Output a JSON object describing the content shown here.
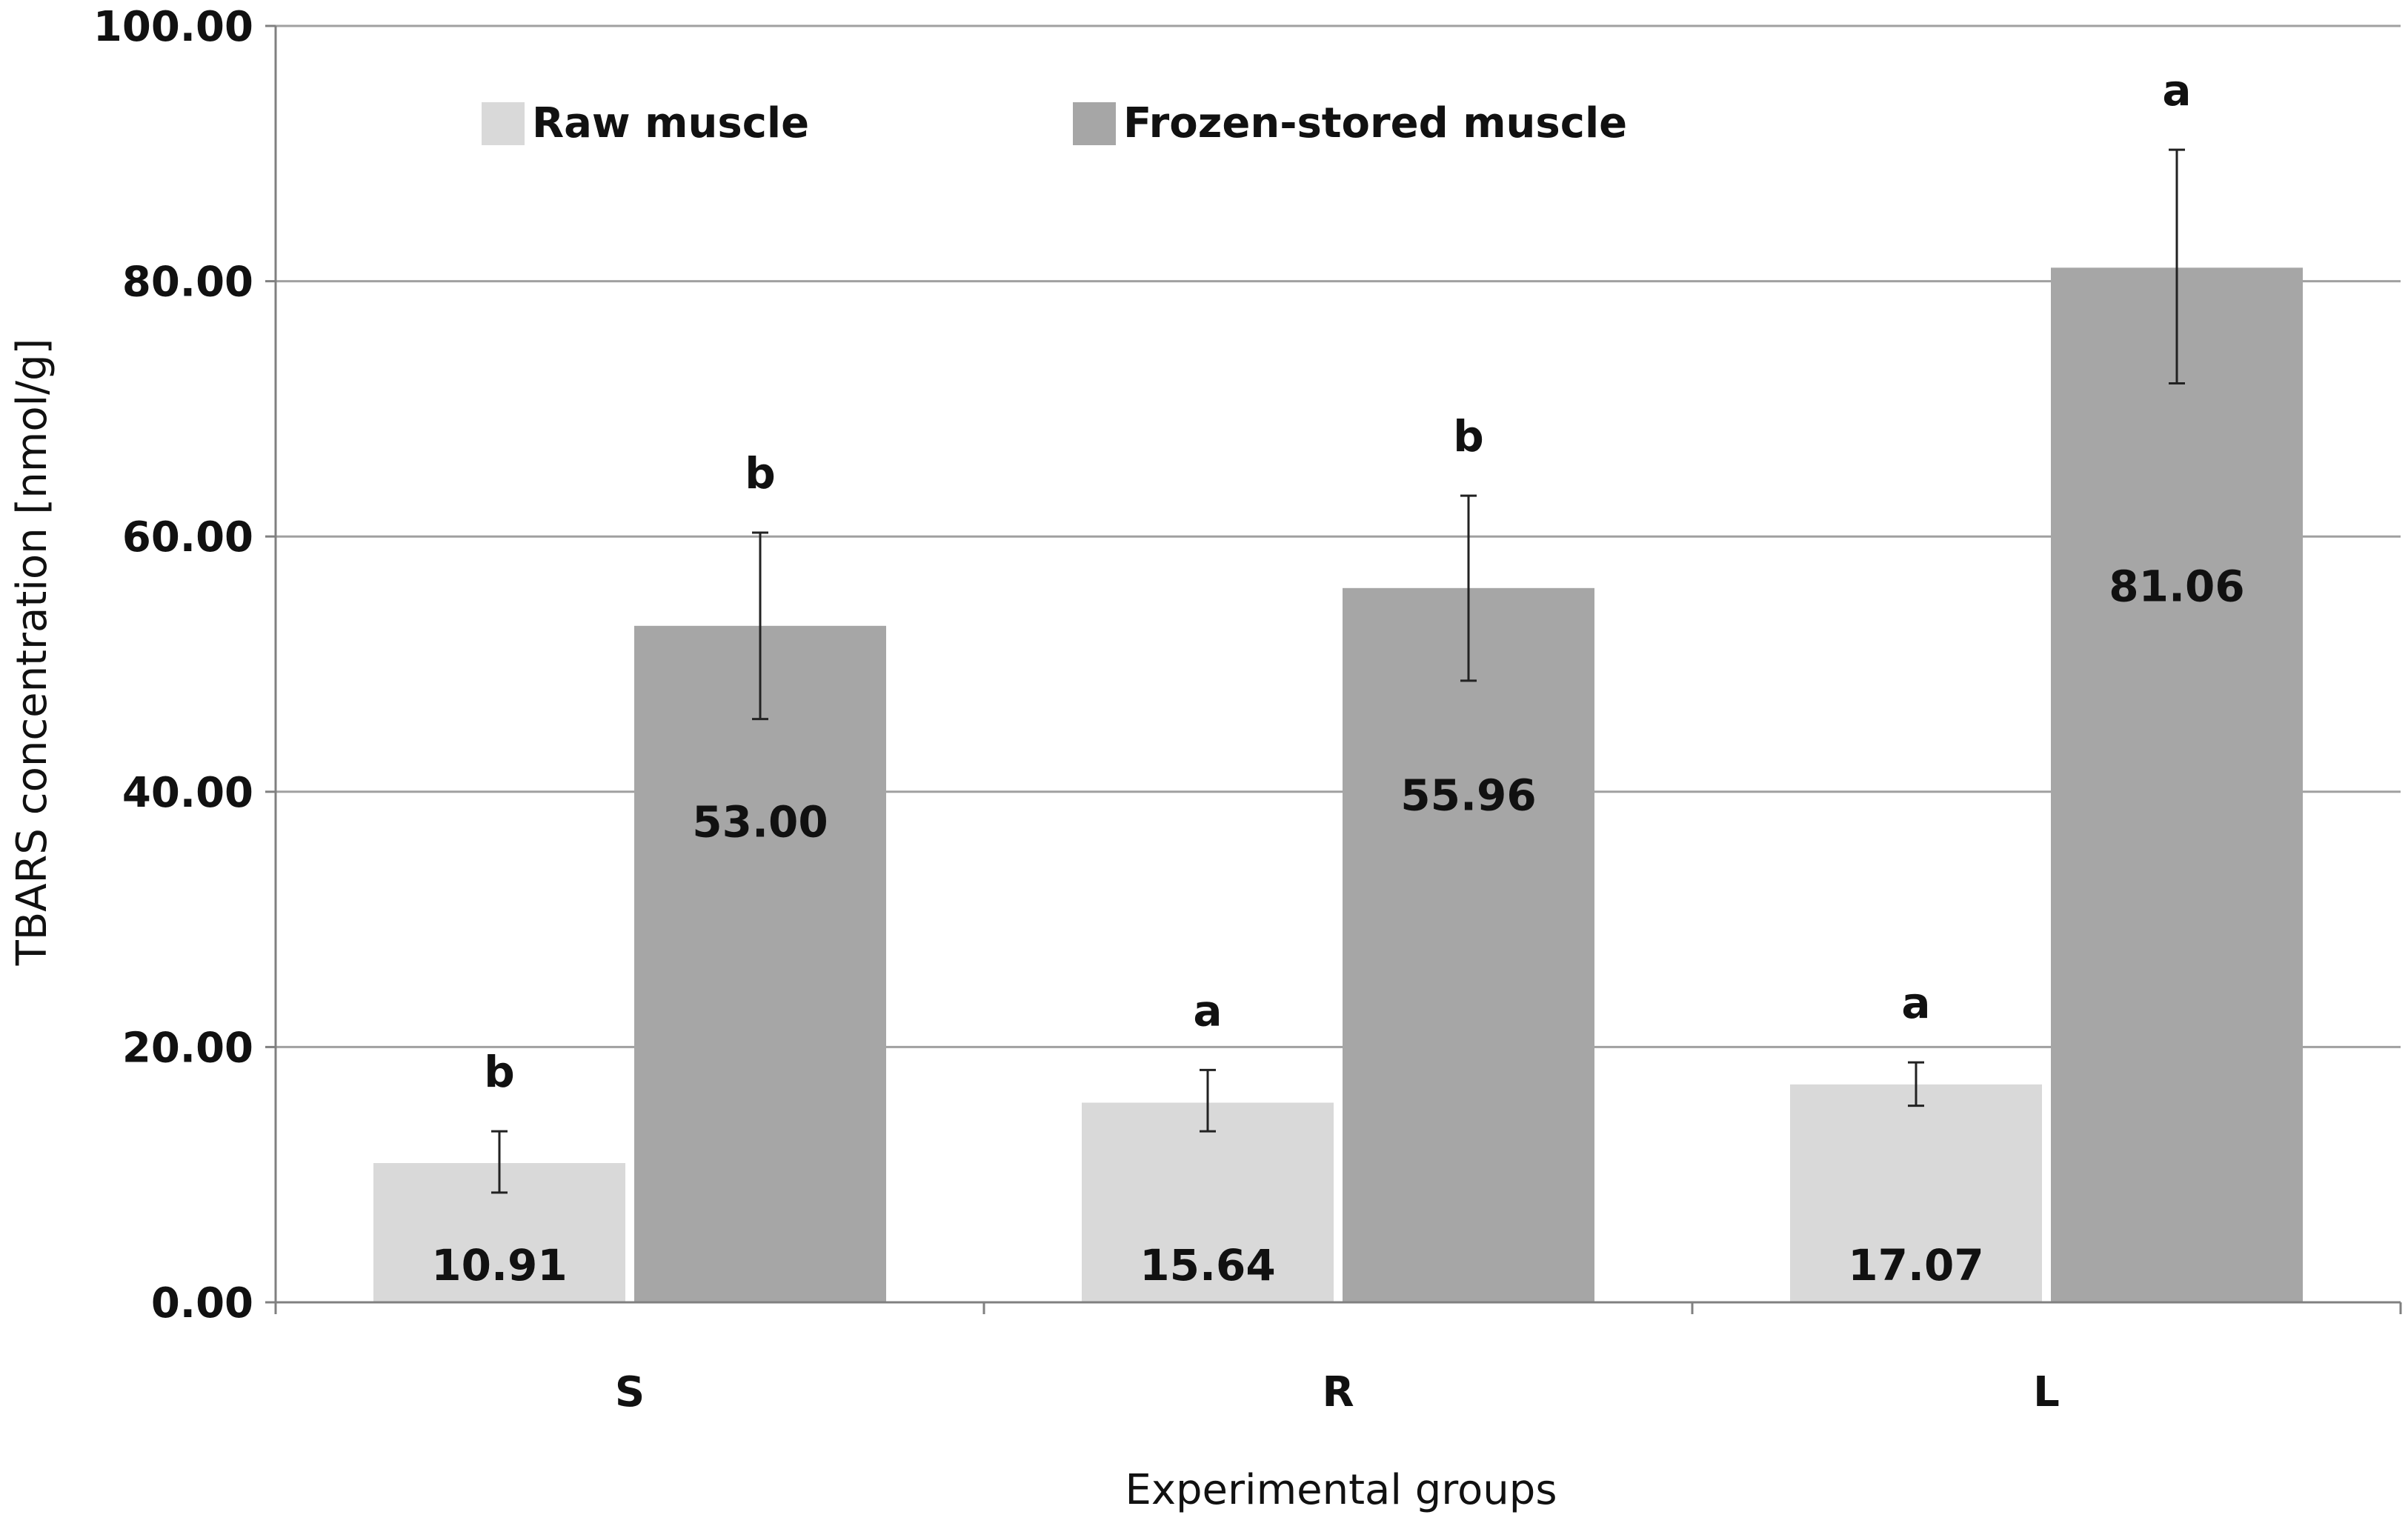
{
  "chart_data": {
    "type": "bar",
    "xlabel": "Experimental groups",
    "ylabel": "TBARS concentration [nmol/g]",
    "categories": [
      "S",
      "R",
      "L"
    ],
    "ylim": [
      0,
      100
    ],
    "yticks": [
      0,
      20,
      40,
      60,
      80,
      100
    ],
    "ytick_labels": [
      "0.00",
      "20.00",
      "40.00",
      "60.00",
      "80.00",
      "100.00"
    ],
    "grid": "horizontal",
    "legend_position": "top-left",
    "series": [
      {
        "name": "Raw muscle",
        "color": "#d9d9d9",
        "values": [
          10.91,
          15.64,
          17.07
        ],
        "value_labels": [
          "10.91",
          "15.64",
          "17.07"
        ],
        "error_low": [
          8.6,
          13.4,
          15.4
        ],
        "error_high": [
          13.4,
          18.2,
          18.8
        ],
        "significance": [
          "b",
          "a",
          "a"
        ]
      },
      {
        "name": "Frozen-stored muscle",
        "color": "#a6a6a6",
        "values": [
          53.0,
          55.96,
          81.06
        ],
        "value_labels": [
          "53.00",
          "55.96",
          "81.06"
        ],
        "error_low": [
          45.7,
          48.7,
          72.0
        ],
        "error_high": [
          60.3,
          63.2,
          90.3
        ],
        "significance": [
          "b",
          "b",
          "a"
        ]
      }
    ]
  }
}
